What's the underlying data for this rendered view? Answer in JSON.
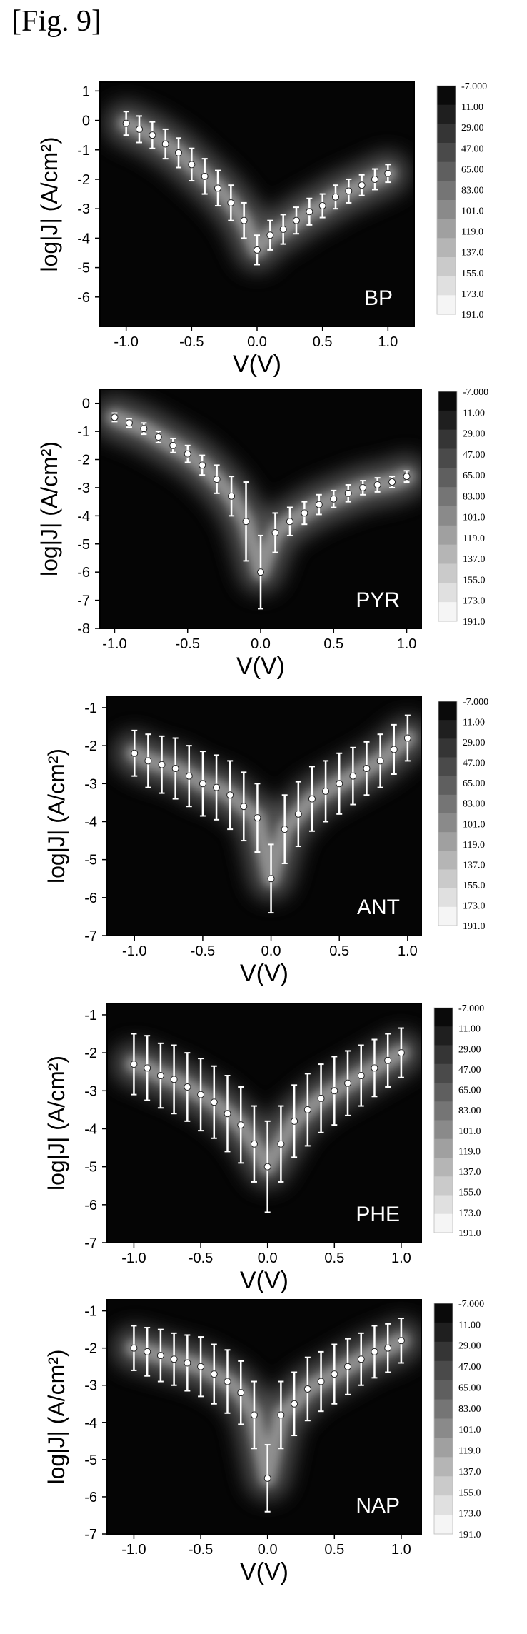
{
  "figure_label": "[Fig. 9]",
  "colorbar": {
    "labels": [
      "-7.000",
      "11.00",
      "29.00",
      "47.00",
      "65.00",
      "83.00",
      "101.0",
      "119.0",
      "137.0",
      "155.0",
      "173.0",
      "191.0"
    ]
  },
  "chart_data": [
    {
      "type": "heatmap",
      "sample_label": "BP",
      "xlabel": "V(V)",
      "ylabel": "log|J| (A/cm²)",
      "xlim": [
        -1.2,
        1.2
      ],
      "ylim": [
        -7,
        1.3
      ],
      "xticks": [
        -1.0,
        -0.5,
        0.0,
        0.5,
        1.0
      ],
      "xtick_labels": [
        "-1.0",
        "-0.5",
        "0.0",
        "0.5",
        "1.0"
      ],
      "yticks": [
        1,
        0,
        -1,
        -2,
        -3,
        -4,
        -5,
        -6
      ],
      "ytick_labels": [
        "1",
        "0",
        "-1",
        "-2",
        "-3",
        "-4",
        "-5",
        "-6"
      ],
      "series": [
        {
          "x": [
            -1.0,
            -0.9,
            -0.8,
            -0.7,
            -0.6,
            -0.5,
            -0.4,
            -0.3,
            -0.2,
            -0.1,
            0.0,
            0.1,
            0.2,
            0.3,
            0.4,
            0.5,
            0.6,
            0.7,
            0.8,
            0.9,
            1.0
          ],
          "y": [
            -0.1,
            -0.3,
            -0.5,
            -0.8,
            -1.1,
            -1.5,
            -1.9,
            -2.3,
            -2.8,
            -3.4,
            -4.4,
            -3.9,
            -3.7,
            -3.4,
            -3.1,
            -2.9,
            -2.6,
            -2.4,
            -2.2,
            -2.0,
            -1.8
          ],
          "yerr": [
            0.4,
            0.45,
            0.45,
            0.5,
            0.5,
            0.55,
            0.6,
            0.6,
            0.6,
            0.6,
            0.5,
            0.5,
            0.5,
            0.45,
            0.45,
            0.4,
            0.4,
            0.4,
            0.35,
            0.35,
            0.3
          ]
        }
      ]
    },
    {
      "type": "heatmap",
      "sample_label": "PYR",
      "xlabel": "V(V)",
      "ylabel": "log|J| (A/cm²)",
      "xlim": [
        -1.1,
        1.1
      ],
      "ylim": [
        -8,
        0.5
      ],
      "xticks": [
        -1.0,
        -0.5,
        0.0,
        0.5,
        1.0
      ],
      "xtick_labels": [
        "-1.0",
        "-0.5",
        "0.0",
        "0.5",
        "1.0"
      ],
      "yticks": [
        0,
        -1,
        -2,
        -3,
        -4,
        -5,
        -6,
        -7,
        -8
      ],
      "ytick_labels": [
        "0",
        "-1",
        "-2",
        "-3",
        "-4",
        "-5",
        "-6",
        "-7",
        "-8"
      ],
      "series": [
        {
          "x": [
            -1.0,
            -0.9,
            -0.8,
            -0.7,
            -0.6,
            -0.5,
            -0.4,
            -0.3,
            -0.2,
            -0.1,
            0.0,
            0.1,
            0.2,
            0.3,
            0.4,
            0.5,
            0.6,
            0.7,
            0.8,
            0.9,
            1.0
          ],
          "y": [
            -0.5,
            -0.7,
            -0.9,
            -1.2,
            -1.5,
            -1.8,
            -2.2,
            -2.7,
            -3.3,
            -4.2,
            -6.0,
            -4.6,
            -4.2,
            -3.9,
            -3.6,
            -3.4,
            -3.2,
            -3.0,
            -2.9,
            -2.8,
            -2.6
          ],
          "yerr": [
            0.15,
            0.15,
            0.2,
            0.2,
            0.25,
            0.3,
            0.35,
            0.5,
            0.7,
            1.4,
            1.3,
            0.7,
            0.5,
            0.4,
            0.35,
            0.3,
            0.3,
            0.25,
            0.25,
            0.2,
            0.2
          ]
        }
      ]
    },
    {
      "type": "heatmap",
      "sample_label": "ANT",
      "xlabel": "V(V)",
      "ylabel": "log|J| (A/cm²)",
      "xlim": [
        -1.2,
        1.1
      ],
      "ylim": [
        -7,
        -0.7
      ],
      "xticks": [
        -1.0,
        -0.5,
        0.0,
        0.5,
        1.0
      ],
      "xtick_labels": [
        "-1.0",
        "-0.5",
        "0.0",
        "0.5",
        "1.0"
      ],
      "yticks": [
        -1,
        -2,
        -3,
        -4,
        -5,
        -6,
        -7
      ],
      "ytick_labels": [
        "-1",
        "-2",
        "-3",
        "-4",
        "-5",
        "-6",
        "-7"
      ],
      "series": [
        {
          "x": [
            -1.0,
            -0.9,
            -0.8,
            -0.7,
            -0.6,
            -0.5,
            -0.4,
            -0.3,
            -0.2,
            -0.1,
            0.0,
            0.1,
            0.2,
            0.3,
            0.4,
            0.5,
            0.6,
            0.7,
            0.8,
            0.9,
            1.0
          ],
          "y": [
            -2.2,
            -2.4,
            -2.5,
            -2.6,
            -2.8,
            -3.0,
            -3.1,
            -3.3,
            -3.6,
            -3.9,
            -5.5,
            -4.2,
            -3.8,
            -3.4,
            -3.2,
            -3.0,
            -2.8,
            -2.6,
            -2.4,
            -2.1,
            -1.8
          ],
          "yerr": [
            0.6,
            0.7,
            0.75,
            0.8,
            0.8,
            0.85,
            0.85,
            0.9,
            0.9,
            0.9,
            0.9,
            0.9,
            0.85,
            0.85,
            0.8,
            0.8,
            0.75,
            0.7,
            0.7,
            0.65,
            0.6
          ]
        }
      ]
    },
    {
      "type": "heatmap",
      "sample_label": "PHE",
      "xlabel": "V(V)",
      "ylabel": "log|J| (A/cm²)",
      "xlim": [
        -1.2,
        1.15
      ],
      "ylim": [
        -7,
        -0.7
      ],
      "xticks": [
        -1.0,
        -0.5,
        0.0,
        0.5,
        1.0
      ],
      "xtick_labels": [
        "-1.0",
        "-0.5",
        "0.0",
        "0.5",
        "1.0"
      ],
      "yticks": [
        -1,
        -2,
        -3,
        -4,
        -5,
        -6,
        -7
      ],
      "ytick_labels": [
        "-1",
        "-2",
        "-3",
        "-4",
        "-5",
        "-6",
        "-7"
      ],
      "series": [
        {
          "x": [
            -1.0,
            -0.9,
            -0.8,
            -0.7,
            -0.6,
            -0.5,
            -0.4,
            -0.3,
            -0.2,
            -0.1,
            0.0,
            0.1,
            0.2,
            0.3,
            0.4,
            0.5,
            0.6,
            0.7,
            0.8,
            0.9,
            1.0
          ],
          "y": [
            -2.3,
            -2.4,
            -2.6,
            -2.7,
            -2.9,
            -3.1,
            -3.3,
            -3.6,
            -3.9,
            -4.4,
            -5.0,
            -4.4,
            -3.8,
            -3.5,
            -3.2,
            -3.0,
            -2.8,
            -2.6,
            -2.4,
            -2.2,
            -2.0
          ],
          "yerr": [
            0.8,
            0.85,
            0.85,
            0.9,
            0.9,
            0.95,
            0.95,
            1.0,
            1.0,
            1.0,
            1.2,
            1.0,
            0.95,
            0.95,
            0.9,
            0.9,
            0.85,
            0.8,
            0.75,
            0.7,
            0.65
          ]
        }
      ]
    },
    {
      "type": "heatmap",
      "sample_label": "NAP",
      "xlabel": "V(V)",
      "ylabel": "log|J| (A/cm²)",
      "xlim": [
        -1.2,
        1.15
      ],
      "ylim": [
        -7,
        -0.7
      ],
      "xticks": [
        -1.0,
        -0.5,
        0.0,
        0.5,
        1.0
      ],
      "xtick_labels": [
        "-1.0",
        "-0.5",
        "0.0",
        "0.5",
        "1.0"
      ],
      "yticks": [
        -1,
        -2,
        -3,
        -4,
        -5,
        -6,
        -7
      ],
      "ytick_labels": [
        "-1",
        "-2",
        "-3",
        "-4",
        "-5",
        "-6",
        "-7"
      ],
      "series": [
        {
          "x": [
            -1.0,
            -0.9,
            -0.8,
            -0.7,
            -0.6,
            -0.5,
            -0.4,
            -0.3,
            -0.2,
            -0.1,
            0.0,
            0.1,
            0.2,
            0.3,
            0.4,
            0.5,
            0.6,
            0.7,
            0.8,
            0.9,
            1.0
          ],
          "y": [
            -2.0,
            -2.1,
            -2.2,
            -2.3,
            -2.4,
            -2.5,
            -2.7,
            -2.9,
            -3.2,
            -3.8,
            -5.5,
            -3.8,
            -3.5,
            -3.1,
            -2.9,
            -2.7,
            -2.5,
            -2.3,
            -2.1,
            -2.0,
            -1.8
          ],
          "yerr": [
            0.6,
            0.65,
            0.7,
            0.7,
            0.75,
            0.8,
            0.8,
            0.85,
            0.85,
            0.9,
            0.9,
            0.9,
            0.85,
            0.85,
            0.8,
            0.8,
            0.75,
            0.7,
            0.7,
            0.65,
            0.6
          ]
        }
      ]
    }
  ]
}
